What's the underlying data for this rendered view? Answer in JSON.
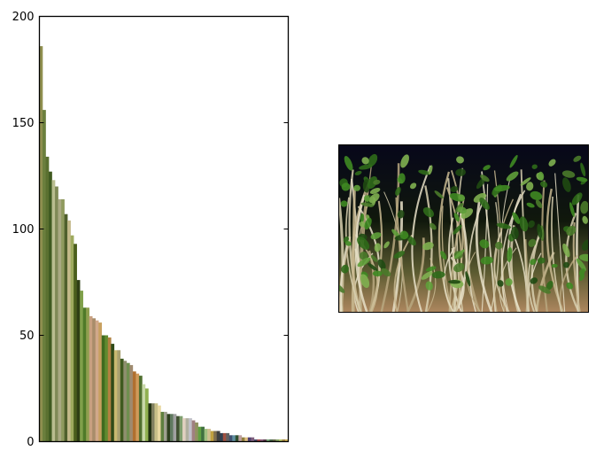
{
  "chart_data": {
    "type": "bar",
    "title": "",
    "xlabel": "",
    "ylabel": "",
    "ylim": [
      0,
      200
    ],
    "yticks": [
      "0",
      "50",
      "100",
      "150",
      "200"
    ],
    "values": [
      186,
      156,
      134,
      127,
      123,
      120,
      114,
      114,
      107,
      104,
      97,
      93,
      76,
      71,
      63,
      63,
      59,
      58,
      57,
      56,
      50,
      50,
      49,
      46,
      43,
      43,
      39,
      38,
      37,
      36,
      33,
      32,
      31,
      27,
      25,
      18,
      18,
      18,
      17,
      14,
      14,
      13,
      13,
      13,
      12,
      12,
      11,
      11,
      11,
      10,
      9,
      7,
      7,
      6,
      6,
      5,
      5,
      5,
      4,
      4,
      4,
      3,
      3,
      3,
      3,
      2,
      2,
      2,
      2,
      1,
      1,
      1,
      1,
      1,
      1,
      1,
      1,
      1,
      1,
      1
    ],
    "colors": [
      "#8f8f4f",
      "#6b7f3d",
      "#5a7030",
      "#3f5a20",
      "#b9bd8f",
      "#7f8a56",
      "#a9a982",
      "#8f9a5e",
      "#4f5f2c",
      "#c3b98a",
      "#9eaa5e",
      "#4a5e1c",
      "#2f3f15",
      "#7fa04a",
      "#4f7a28",
      "#8f9f4f",
      "#c8a080",
      "#a88c6a",
      "#d0a88a",
      "#c8a060",
      "#3f6a1f",
      "#5f8a2f",
      "#b08040",
      "#2f4a18",
      "#c8b870",
      "#a8a070",
      "#3f5a1f",
      "#8f8f6f",
      "#6f8f4f",
      "#9f8a6f",
      "#b07030",
      "#d09a5a",
      "#4f6f2f",
      "#c8d8a8",
      "#90b050",
      "#1f2f10",
      "#7f7f5f",
      "#c8c088",
      "#e8d8a0",
      "#5f7f3f",
      "#a0a090",
      "#2f3f1f",
      "#607a60",
      "#a0a0a0",
      "#3f4f30",
      "#80a070",
      "#e0d0c0",
      "#b0b0a0",
      "#c0c0c8",
      "#a08080",
      "#909060",
      "#60a040",
      "#40703f",
      "#a0c080",
      "#d0c090",
      "#c0a040",
      "#7f6f4f",
      "#3f3f3f",
      "#304050",
      "#a05040",
      "#606060",
      "#405070",
      "#5f8fa0",
      "#2f4f2f",
      "#c0a0a0",
      "#8f7f3f",
      "#e0c080",
      "#4f3f6f",
      "#7f5f7f",
      "#3f3f5f",
      "#a04040",
      "#805070",
      "#503040",
      "#6f9f6f",
      "#3f5f3f",
      "#5f5f3f",
      "#7f9f5f",
      "#b0c060",
      "#9f7f3f",
      "#d0b050"
    ]
  },
  "image_panel": {
    "subject": "green sprouts photo"
  }
}
